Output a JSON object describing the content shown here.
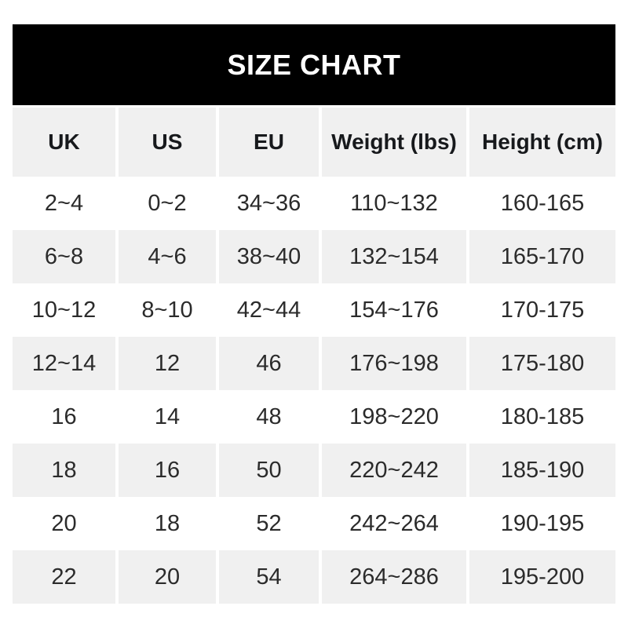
{
  "banner": {
    "title": "SIZE CHART"
  },
  "table": {
    "columns": [
      "UK",
      "US",
      "EU",
      "Weight (lbs)",
      "Height (cm)"
    ],
    "rows": [
      [
        "2~4",
        "0~2",
        "34~36",
        "110~132",
        "160-165"
      ],
      [
        "6~8",
        "4~6",
        "38~40",
        "132~154",
        "165-170"
      ],
      [
        "10~12",
        "8~10",
        "42~44",
        "154~176",
        "170-175"
      ],
      [
        "12~14",
        "12",
        "46",
        "176~198",
        "175-180"
      ],
      [
        "16",
        "14",
        "48",
        "198~220",
        "180-185"
      ],
      [
        "18",
        "16",
        "50",
        "220~242",
        "185-190"
      ],
      [
        "20",
        "18",
        "52",
        "242~264",
        "190-195"
      ],
      [
        "22",
        "20",
        "54",
        "264~286",
        "195-200"
      ]
    ]
  },
  "colors": {
    "banner_bg": "#000000",
    "banner_text": "#ffffff",
    "alt_row_bg": "#f0f0f0",
    "header_text": "#17191c",
    "cell_text": "#2b2b2b",
    "page_bg": "#ffffff"
  },
  "chart_data": {
    "type": "table",
    "title": "SIZE CHART",
    "columns": [
      "UK",
      "US",
      "EU",
      "Weight (lbs)",
      "Height (cm)"
    ],
    "rows": [
      [
        "2~4",
        "0~2",
        "34~36",
        "110~132",
        "160-165"
      ],
      [
        "6~8",
        "4~6",
        "38~40",
        "132~154",
        "165-170"
      ],
      [
        "10~12",
        "8~10",
        "42~44",
        "154~176",
        "170-175"
      ],
      [
        "12~14",
        "12",
        "46",
        "176~198",
        "175-180"
      ],
      [
        "16",
        "14",
        "48",
        "198~220",
        "180-185"
      ],
      [
        "18",
        "16",
        "50",
        "220~242",
        "185-190"
      ],
      [
        "20",
        "18",
        "52",
        "242~264",
        "190-195"
      ],
      [
        "22",
        "20",
        "54",
        "264~286",
        "195-200"
      ]
    ],
    "layout": {
      "banner_position": "top",
      "alternating_row_shading": true,
      "first_data_row_shaded": false
    }
  }
}
